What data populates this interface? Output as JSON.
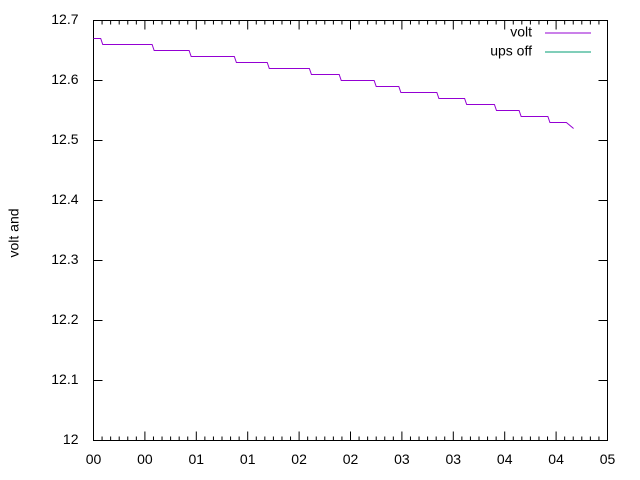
{
  "chart_data": {
    "type": "line",
    "y_label": "volt and",
    "x": [
      0,
      0.07,
      0.09,
      0.57,
      0.59,
      0.93,
      0.95,
      1.37,
      1.39,
      1.69,
      1.71,
      2.1,
      2.12,
      2.39,
      2.41,
      2.73,
      2.75,
      2.97,
      2.99,
      3.34,
      3.36,
      3.61,
      3.63,
      3.9,
      3.92,
      4.14,
      4.16,
      4.42,
      4.44,
      4.6,
      4.67
    ],
    "series": [
      {
        "name": "volt",
        "color": "#9400d3",
        "values": [
          12.67,
          12.67,
          12.66,
          12.66,
          12.65,
          12.65,
          12.64,
          12.64,
          12.63,
          12.63,
          12.62,
          12.62,
          12.61,
          12.61,
          12.6,
          12.6,
          12.59,
          12.59,
          12.58,
          12.58,
          12.57,
          12.57,
          12.56,
          12.56,
          12.55,
          12.55,
          12.54,
          12.54,
          12.53,
          12.53,
          12.52
        ]
      },
      {
        "name": "ups off",
        "color": "#009e73",
        "values": [
          null,
          null,
          null,
          null,
          null,
          null,
          null,
          null,
          null,
          null,
          null,
          null,
          null,
          null,
          null,
          null,
          null,
          null,
          null,
          null,
          null,
          null,
          null,
          null,
          null,
          null,
          null,
          null,
          null,
          null,
          null
        ]
      }
    ],
    "xlim": [
      0,
      5
    ],
    "xticks": [
      {
        "value": 0,
        "label": "00"
      },
      {
        "value": 0.5,
        "label": "00"
      },
      {
        "value": 1,
        "label": "01"
      },
      {
        "value": 1.5,
        "label": "01"
      },
      {
        "value": 2,
        "label": "02"
      },
      {
        "value": 2.5,
        "label": "02"
      },
      {
        "value": 3,
        "label": "03"
      },
      {
        "value": 3.5,
        "label": "03"
      },
      {
        "value": 4,
        "label": "04"
      },
      {
        "value": 4.5,
        "label": "04"
      },
      {
        "value": 5,
        "label": "05"
      }
    ],
    "ylim": [
      12,
      12.7
    ],
    "yticks": [
      12,
      12.1,
      12.2,
      12.3,
      12.4,
      12.5,
      12.6,
      12.7
    ],
    "legend": "top-right"
  }
}
